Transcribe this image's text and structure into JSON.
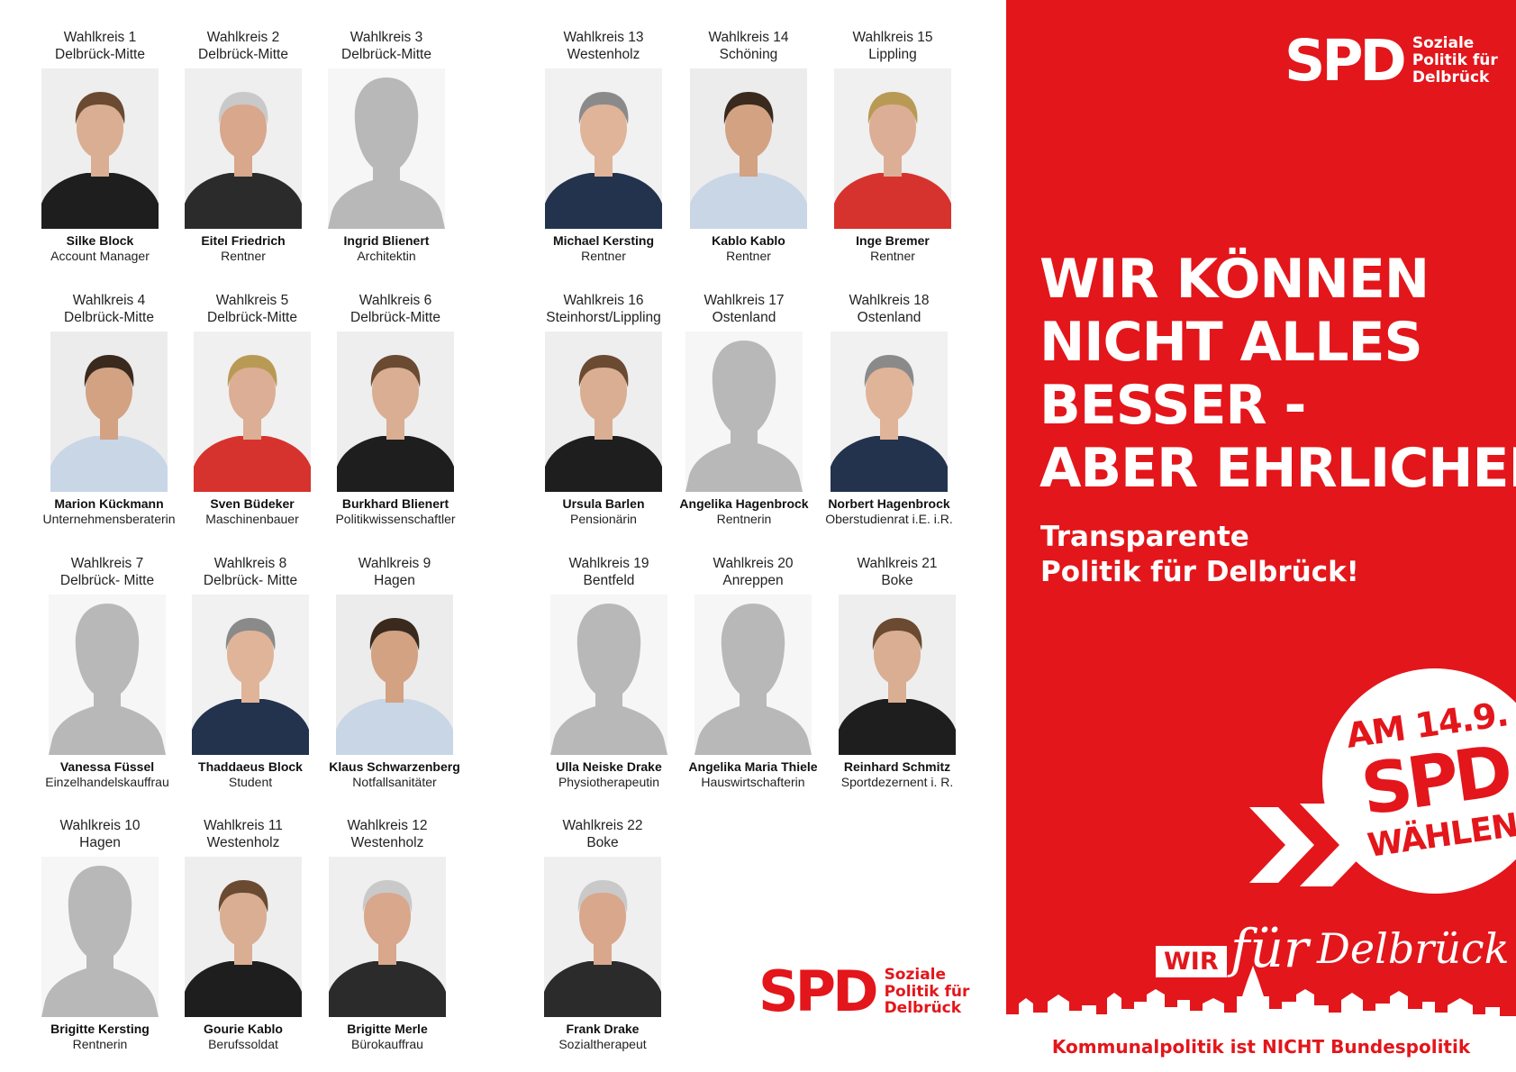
{
  "candidates": [
    {
      "region": "Wahlkreis 1",
      "area": "Delbrück-Mitte",
      "name": "Silke Block",
      "job": "Account Manager",
      "photo": "portrait"
    },
    {
      "region": "Wahlkreis 2",
      "area": "Delbrück-Mitte",
      "name": "Eitel Friedrich",
      "job": "Rentner",
      "photo": "portrait"
    },
    {
      "region": "Wahlkreis 3",
      "area": "Delbrück-Mitte",
      "name": "Ingrid Blienert",
      "job": "Architektin",
      "photo": "placeholder"
    },
    {
      "region": "Wahlkreis 4",
      "area": "Delbrück-Mitte",
      "name": "Marion Kückmann",
      "job": "Unternehmensberaterin",
      "photo": "portrait"
    },
    {
      "region": "Wahlkreis 5",
      "area": "Delbrück-Mitte",
      "name": "Sven Büdeker",
      "job": "Maschinenbauer",
      "photo": "portrait"
    },
    {
      "region": "Wahlkreis 6",
      "area": "Delbrück-Mitte",
      "name": "Burkhard Blienert",
      "job": "Politikwissenschaftler",
      "photo": "portrait"
    },
    {
      "region": "Wahlkreis 7",
      "area": "Delbrück- Mitte",
      "name": "Vanessa Füssel",
      "job": "Einzelhandelskauffrau",
      "photo": "placeholder"
    },
    {
      "region": "Wahlkreis 8",
      "area": "Delbrück- Mitte",
      "name": "Thaddaeus Block",
      "job": "Student",
      "photo": "portrait"
    },
    {
      "region": "Wahlkreis 9",
      "area": "Hagen",
      "name": "Klaus Schwarzenberg",
      "job": "Notfallsanitäter",
      "photo": "portrait"
    },
    {
      "region": "Wahlkreis 10",
      "area": "Hagen",
      "name": "Brigitte Kersting",
      "job": "Rentnerin",
      "photo": "placeholder"
    },
    {
      "region": "Wahlkreis 11",
      "area": "Westenholz",
      "name": "Gourie Kablo",
      "job": "Berufssoldat",
      "photo": "portrait"
    },
    {
      "region": "Wahlkreis 12",
      "area": "Westenholz",
      "name": "Brigitte Merle",
      "job": "Bürokauffrau",
      "photo": "portrait"
    },
    {
      "region": "Wahlkreis 13",
      "area": "Westenholz",
      "name": "Michael Kersting",
      "job": "Rentner",
      "photo": "portrait"
    },
    {
      "region": "Wahlkreis 14",
      "area": "Schöning",
      "name": "Kablo Kablo",
      "job": "Rentner",
      "photo": "portrait"
    },
    {
      "region": "Wahlkreis 15",
      "area": "Lippling",
      "name": "Inge Bremer",
      "job": "Rentner",
      "photo": "portrait"
    },
    {
      "region": "Wahlkreis 16",
      "area": "Steinhorst/Lippling",
      "name": "Ursula Barlen",
      "job": "Pensionärin",
      "photo": "portrait"
    },
    {
      "region": "Wahlkreis 17",
      "area": "Ostenland",
      "name": "Angelika Hagenbrock",
      "job": "Rentnerin",
      "photo": "placeholder"
    },
    {
      "region": "Wahlkreis 18",
      "area": "Ostenland",
      "name": "Norbert Hagenbrock",
      "job": "Oberstudienrat i.E. i.R.",
      "photo": "portrait"
    },
    {
      "region": "Wahlkreis 19",
      "area": "Bentfeld",
      "name": "Ulla Neiske Drake",
      "job": "Physiotherapeutin",
      "photo": "placeholder"
    },
    {
      "region": "Wahlkreis 20",
      "area": "Anreppen",
      "name": "Angelika Maria Thiele",
      "job": "Hauswirtschafterin",
      "photo": "placeholder"
    },
    {
      "region": "Wahlkreis 21",
      "area": "Boke",
      "name": "Reinhard Schmitz",
      "job": "Sportdezernent i. R.",
      "photo": "portrait"
    },
    {
      "region": "Wahlkreis 22",
      "area": "Boke",
      "name": "Frank Drake",
      "job": "Sozialtherapeut",
      "photo": "portrait"
    }
  ],
  "logo_top": {
    "mark": "SPD",
    "claim": [
      "Soziale",
      "Politik für",
      "Delbrück"
    ]
  },
  "logo_bottom": {
    "mark": "SPD",
    "claim": [
      "Soziale",
      "Politik für",
      "Delbrück"
    ]
  },
  "headline": [
    "WIR KÖNNEN",
    "NICHT ALLES",
    "BESSER -",
    "ABER EHRLICHER"
  ],
  "subline": [
    "Transparente",
    "Politik für Delbrück!"
  ],
  "badge": {
    "line1": "AM 14.9.",
    "line2": "SPD",
    "line3": "WÄHLEN"
  },
  "campaign": {
    "wir": "WIR",
    "fuer": "für",
    "place": "Delbrück"
  },
  "footer_slogan": "Kommunalpolitik ist NICHT Bundespolitik",
  "colors": {
    "spd_red": "#e3161b",
    "placeholder_gray": "#b8b8b8",
    "white": "#ffffff"
  }
}
